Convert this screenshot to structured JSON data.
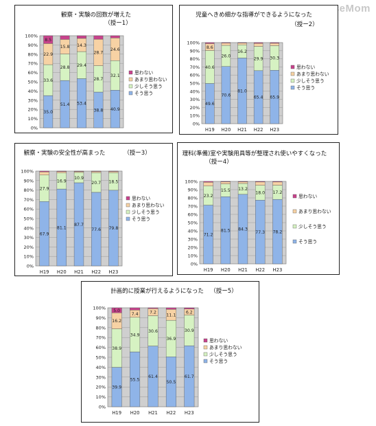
{
  "watermark": "ReseMom",
  "series_colors": {
    "soo_omou": "#8fb4e8",
    "sukoshi_soo_omou": "#d6f2c2",
    "amari_omowanai": "#f7d2a4",
    "omowanai": "#c8428c"
  },
  "chart_data": [
    {
      "type": "bar",
      "stacked": true,
      "title": "観察・実験の回数が増えた",
      "code": "（授ー1）",
      "categories": [
        "H19",
        "H20",
        "H21",
        "H22",
        "H23"
      ],
      "yticks": [
        "0%",
        "10%",
        "20%",
        "30%",
        "40%",
        "50%",
        "60%",
        "70%",
        "80%",
        "90%",
        "100%"
      ],
      "ylim": [
        0,
        100
      ],
      "legend_position": "right",
      "series": [
        {
          "name": "そう思う",
          "values": [
            35.0,
            51.4,
            53.4,
            38.8,
            40.9
          ]
        },
        {
          "name": "少しそう思う",
          "values": [
            33.6,
            28.8,
            29.4,
            28.7,
            32.1
          ]
        },
        {
          "name": "あまり思わない",
          "values": [
            22.9,
            15.8,
            14.3,
            28.7,
            24.6
          ]
        },
        {
          "name": "思わない",
          "values": [
            8.5,
            4.0,
            2.9,
            3.8,
            2.4
          ]
        }
      ],
      "labels": [
        [
          "35.0",
          "51.4",
          "53.4",
          "38.8",
          "40.9"
        ],
        [
          "33.6",
          "28.8",
          "29.4",
          "28.7",
          "32.1"
        ],
        [
          "22.9",
          "15.8",
          "14.3",
          "28.7",
          "24.6"
        ],
        [
          "8.5",
          "",
          "",
          "",
          ""
        ]
      ]
    },
    {
      "type": "bar",
      "stacked": true,
      "title": "児童へきめ細かな指導ができるようになった",
      "code": "（授ー2）",
      "categories": [
        "H19",
        "H20",
        "H21",
        "H22",
        "H23"
      ],
      "yticks": [
        "0%",
        "10%",
        "20%",
        "30%",
        "40%",
        "50%",
        "60%",
        "70%",
        "80%",
        "90%",
        "100%"
      ],
      "ylim": [
        0,
        100
      ],
      "legend_position": "right",
      "series": [
        {
          "name": "そう思う",
          "values": [
            49.6,
            70.6,
            81.0,
            65.4,
            65.9
          ]
        },
        {
          "name": "少しそう思う",
          "values": [
            40.6,
            26.0,
            16.2,
            29.9,
            30.3
          ]
        },
        {
          "name": "あまり思わない",
          "values": [
            8.6,
            2.8,
            2.3,
            3.8,
            3.0
          ]
        },
        {
          "name": "思わない",
          "values": [
            1.2,
            0.6,
            0.5,
            0.9,
            0.8
          ]
        }
      ],
      "labels": [
        [
          "49.6",
          "70.6",
          "81.0",
          "65.4",
          "65.9"
        ],
        [
          "40.6",
          "26.0",
          "16.2",
          "29.9",
          "30.3"
        ],
        [
          "8.6",
          "",
          "",
          "",
          ""
        ],
        [
          "",
          "",
          "",
          "",
          ""
        ]
      ]
    },
    {
      "type": "bar",
      "stacked": true,
      "title": "観察・実験の安全性が高まった",
      "code": "（授ー3）",
      "categories": [
        "H19",
        "H20",
        "H21",
        "H22",
        "H23"
      ],
      "yticks": [
        "0%",
        "10%",
        "20%",
        "30%",
        "40%",
        "50%",
        "60%",
        "70%",
        "80%",
        "90%",
        "100%"
      ],
      "ylim": [
        0,
        100
      ],
      "legend_position": "right",
      "series": [
        {
          "name": "そう思う",
          "values": [
            67.9,
            81.1,
            87.7,
            77.6,
            79.8
          ]
        },
        {
          "name": "少しそう思う",
          "values": [
            27.9,
            16.9,
            10.9,
            20.7,
            18.5
          ]
        },
        {
          "name": "あまり思わない",
          "values": [
            3.4,
            1.5,
            1.0,
            1.3,
            1.3
          ]
        },
        {
          "name": "思わない",
          "values": [
            0.8,
            0.5,
            0.4,
            0.4,
            0.4
          ]
        }
      ],
      "labels": [
        [
          "67.9",
          "81.1",
          "87.7",
          "77.6",
          "79.8"
        ],
        [
          "27.9",
          "16.9",
          "10.9",
          "20.7",
          "18.5"
        ],
        [
          "",
          "",
          "",
          "",
          ""
        ],
        [
          "",
          "",
          "",
          "",
          ""
        ]
      ]
    },
    {
      "type": "bar",
      "stacked": true,
      "title": "理科(準備)室や実験用具等が整理され使いやすくなった",
      "code": "（授ー4）",
      "categories": [
        "H19",
        "H20",
        "H21",
        "H22",
        "H23"
      ],
      "yticks": [
        "0%",
        "10%",
        "20%",
        "30%",
        "40%",
        "50%",
        "60%",
        "70%",
        "80%",
        "90%",
        "100%"
      ],
      "ylim": [
        0,
        100
      ],
      "legend_position": "right",
      "series": [
        {
          "name": "そう思う",
          "values": [
            71.2,
            81.5,
            84.3,
            77.3,
            78.2
          ]
        },
        {
          "name": "少しそう思う",
          "values": [
            23.2,
            15.5,
            13.2,
            18.0,
            17.2
          ]
        },
        {
          "name": "あまり思わない",
          "values": [
            4.6,
            2.5,
            2.0,
            4.0,
            3.9
          ]
        },
        {
          "name": "思わない",
          "values": [
            1.0,
            0.5,
            0.5,
            0.7,
            0.7
          ]
        }
      ],
      "labels": [
        [
          "71.2",
          "81.5",
          "84.3",
          "77.3",
          "78.2"
        ],
        [
          "23.2",
          "15.5",
          "13.2",
          "18.0",
          "17.2"
        ],
        [
          "",
          "",
          "",
          "",
          ""
        ],
        [
          "",
          "",
          "",
          "",
          ""
        ]
      ]
    },
    {
      "type": "bar",
      "stacked": true,
      "title": "計画的に授業が行えるようになった",
      "code": "（授ー5）",
      "categories": [
        "H19",
        "H20",
        "H21",
        "H22",
        "H23"
      ],
      "yticks": [
        "0%",
        "10%",
        "20%",
        "30%",
        "40%",
        "50%",
        "60%",
        "70%",
        "80%",
        "90%",
        "100%"
      ],
      "ylim": [
        0,
        100
      ],
      "legend_position": "right",
      "series": [
        {
          "name": "そう思う",
          "values": [
            39.9,
            55.5,
            61.4,
            50.5,
            61.7
          ]
        },
        {
          "name": "少しそう思う",
          "values": [
            38.9,
            34.9,
            30.6,
            36.9,
            30.9
          ]
        },
        {
          "name": "あまり思わない",
          "values": [
            16.2,
            7.4,
            7.2,
            11.1,
            6.2
          ]
        },
        {
          "name": "思わない",
          "values": [
            5.0,
            2.2,
            0.8,
            1.5,
            1.2
          ]
        }
      ],
      "labels": [
        [
          "39.9",
          "55.5",
          "61.4",
          "50.5",
          "61.7"
        ],
        [
          "38.9",
          "34.9",
          "30.6",
          "36.9",
          "30.9"
        ],
        [
          "16.2",
          "7.4",
          "7.2",
          "11.1",
          "6.2"
        ],
        [
          "5.0",
          "",
          "",
          "",
          ""
        ]
      ]
    }
  ]
}
